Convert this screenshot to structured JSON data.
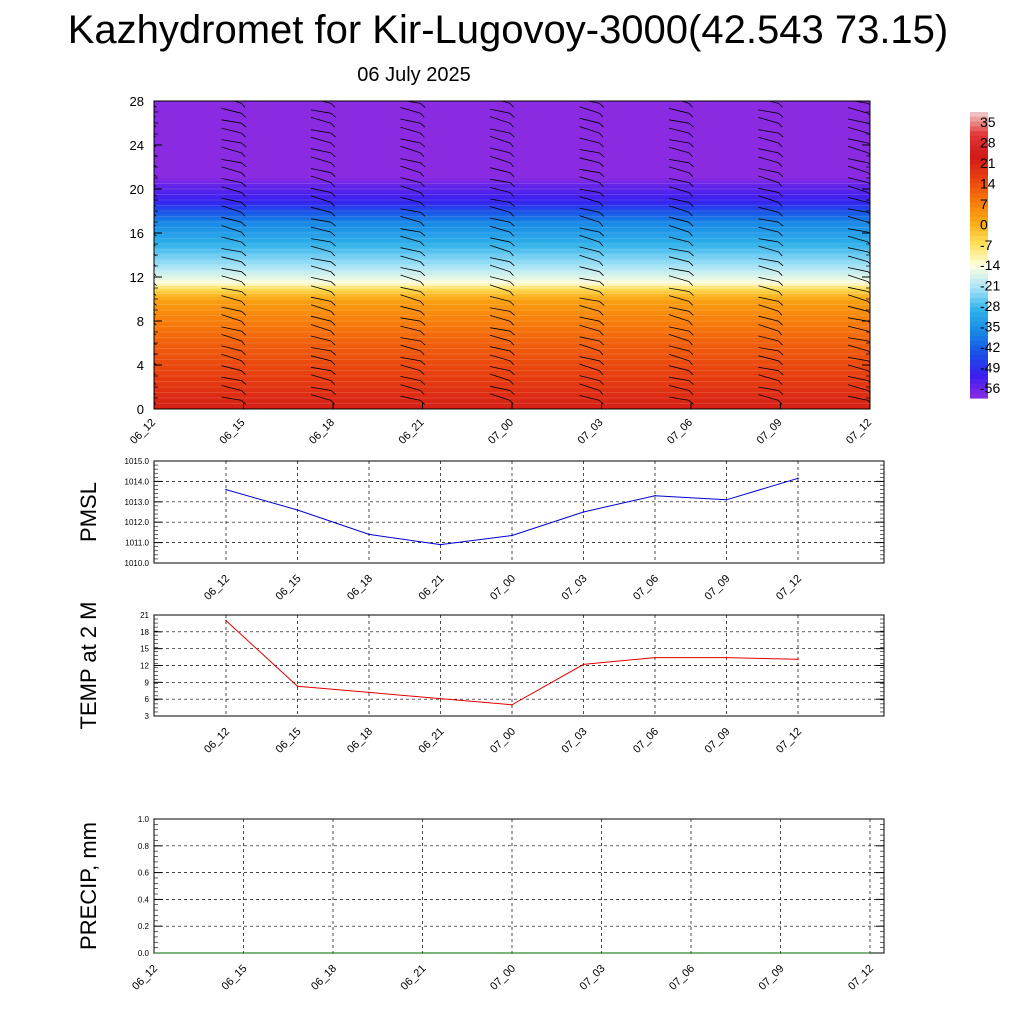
{
  "page": {
    "title": "Kazhydromet for Kir-Lugovoy-3000(42.543 73.15)",
    "subtitle": "06 July 2025"
  },
  "chart_data": [
    {
      "type": "heatmap",
      "title": "",
      "x_ticks": [
        "06_12",
        "06_15",
        "06_18",
        "06_21",
        "07_00",
        "07_03",
        "07_06",
        "07_09",
        "07_12"
      ],
      "y_ticks": [
        0,
        4,
        8,
        12,
        16,
        20,
        24,
        28
      ],
      "ylim": [
        0,
        28
      ],
      "colorbar": {
        "labels": [
          "35",
          "28",
          "21",
          "14",
          "7",
          "0",
          "-7",
          "-14",
          "-21",
          "-28",
          "-35",
          "-42",
          "-49",
          "-56"
        ],
        "colors": [
          "#f0d0d0",
          "#e23a3a",
          "#d11818",
          "#e8400f",
          "#f7760a",
          "#f9a913",
          "#fde05a",
          "#ffffe0",
          "#a8e4f7",
          "#2fb2ea",
          "#1788e6",
          "#1950e8",
          "#3a1ff0",
          "#8a2be2"
        ]
      },
      "temperature_profile": [
        {
          "y": 0,
          "t": 20
        },
        {
          "y": 2,
          "t": 16
        },
        {
          "y": 4,
          "t": 13
        },
        {
          "y": 6,
          "t": 10
        },
        {
          "y": 8,
          "t": 6
        },
        {
          "y": 10,
          "t": 1
        },
        {
          "y": 11,
          "t": -7
        },
        {
          "y": 11.5,
          "t": -14
        },
        {
          "y": 13,
          "t": -21
        },
        {
          "y": 15,
          "t": -28
        },
        {
          "y": 17,
          "t": -35
        },
        {
          "y": 19,
          "t": -49
        },
        {
          "y": 20.5,
          "t": -53
        },
        {
          "y": 21,
          "t": -56
        },
        {
          "y": 28,
          "t": -56
        }
      ],
      "wind_barb_columns": [
        "06_12",
        "06_15",
        "06_18",
        "06_21",
        "07_00",
        "07_03",
        "07_06",
        "07_09",
        "07_12"
      ],
      "grid": false
    },
    {
      "type": "line",
      "ylabel": "PMSL",
      "categories": [
        "06_12",
        "06_15",
        "06_18",
        "06_21",
        "07_00",
        "07_03",
        "07_06",
        "07_09",
        "07_12"
      ],
      "y_ticks": [
        "1010.0",
        "1011.0",
        "1012.0",
        "1013.0",
        "1014.0",
        "1015.0"
      ],
      "ylim": [
        1010,
        1015
      ],
      "series": [
        {
          "values": [
            1013.6,
            1012.6,
            1011.4,
            1010.9,
            1011.35,
            1012.5,
            1013.3,
            1013.1,
            1014.15
          ],
          "color": "#0000cc"
        }
      ],
      "grid": true
    },
    {
      "type": "line",
      "ylabel": "TEMP at 2 M",
      "categories": [
        "06_12",
        "06_15",
        "06_18",
        "06_21",
        "07_00",
        "07_03",
        "07_06",
        "07_09",
        "07_12"
      ],
      "y_ticks": [
        "3",
        "6",
        "9",
        "12",
        "15",
        "18",
        "21"
      ],
      "ylim": [
        3,
        21
      ],
      "series": [
        {
          "values": [
            20,
            8.3,
            7.2,
            6.1,
            5.0,
            12.2,
            13.4,
            13.4,
            13.1
          ],
          "color": "#e00000"
        }
      ],
      "grid": true
    },
    {
      "type": "line",
      "ylabel": "PRECIP, mm",
      "categories": [
        "06_12",
        "06_15",
        "06_18",
        "06_21",
        "07_00",
        "07_03",
        "07_06",
        "07_09",
        "07_12"
      ],
      "y_ticks": [
        "0.0",
        "0.2",
        "0.4",
        "0.6",
        "0.8",
        "1.0"
      ],
      "ylim": [
        0,
        1
      ],
      "series": [
        {
          "values": [
            0,
            0,
            0,
            0,
            0,
            0,
            0,
            0,
            0
          ],
          "color": "#006600"
        }
      ],
      "grid": true
    }
  ]
}
